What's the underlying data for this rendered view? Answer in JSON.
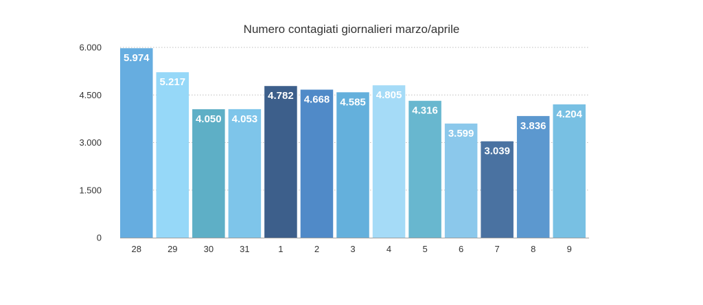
{
  "chart_data": {
    "type": "bar",
    "title": "Numero contagiati giornalieri marzo/aprile",
    "xlabel": "",
    "ylabel": "",
    "categories": [
      "28",
      "29",
      "30",
      "31",
      "1",
      "2",
      "3",
      "4",
      "5",
      "6",
      "7",
      "8",
      "9"
    ],
    "values": [
      5974,
      5217,
      4050,
      4053,
      4782,
      4668,
      4585,
      4805,
      4316,
      3599,
      3039,
      3836,
      4204
    ],
    "data_labels": [
      "5.974",
      "5.217",
      "4.050",
      "4.053",
      "4.782",
      "4.668",
      "4.585",
      "4.805",
      "4.316",
      "3.599",
      "3.039",
      "3.836",
      "4.204"
    ],
    "ylim": [
      0,
      6000
    ],
    "yticks": [
      0,
      1500,
      3000,
      4500,
      6000
    ],
    "ytick_labels": [
      "0",
      "1.500",
      "3.000",
      "4.500",
      "6.000"
    ],
    "grid": true,
    "legend": "none",
    "bar_colors": [
      "#66ade0",
      "#96d8f8",
      "#5eafc6",
      "#7ec5ea",
      "#3d5f8b",
      "#508ac8",
      "#64b0dc",
      "#a5dbf7",
      "#68b7cf",
      "#8bc8eb",
      "#4a72a1",
      "#5c98cf",
      "#78c0e3"
    ]
  }
}
